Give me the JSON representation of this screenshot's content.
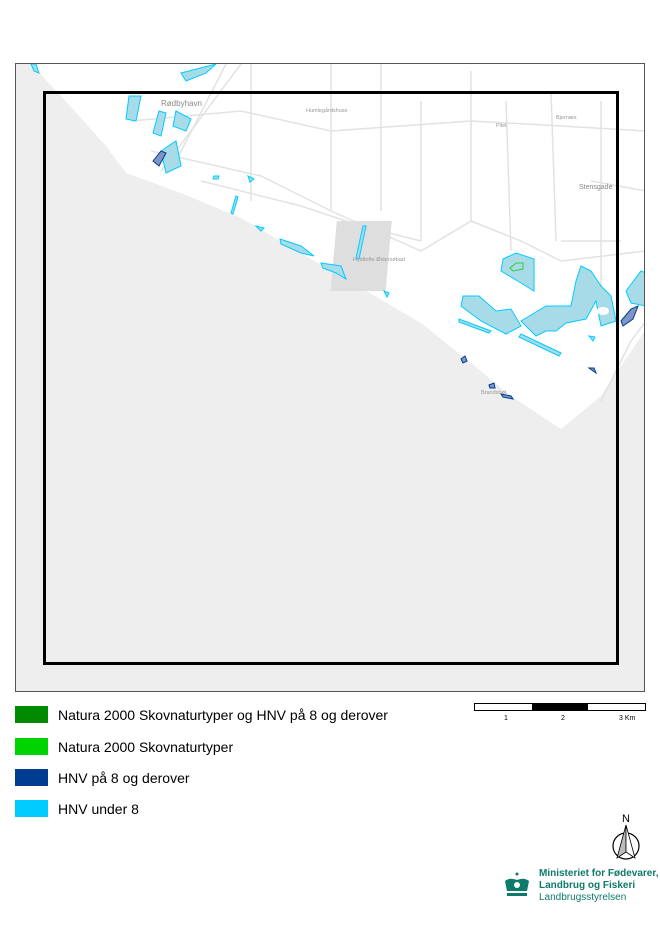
{
  "map": {
    "place_names": [
      "Rødbyhavn",
      "Humlegårdshuse",
      "Pilet",
      "Bjernæs",
      "Stensgade",
      "Hyldtofte Østersøbad",
      "Brandsbøl"
    ],
    "colors": {
      "sea": "#eeeeee",
      "land": "#ffffff",
      "roads": "#dddddd",
      "extent_frame": "#000000"
    }
  },
  "legend": [
    {
      "label": "Natura 2000 Skovnaturtyper og HNV på 8 og derover",
      "color": "#008a00"
    },
    {
      "label": "Natura 2000 Skovnaturtyper",
      "color": "#00d400"
    },
    {
      "label": "HNV på 8 og derover",
      "color": "#003c8f"
    },
    {
      "label": "HNV under 8",
      "color": "#00ccff"
    }
  ],
  "scale_bar": {
    "labels": [
      "1",
      "2",
      "3 Km"
    ]
  },
  "north_arrow": {
    "label": "N"
  },
  "logo": {
    "line1": "Ministeriet for Fødevarer,",
    "line2": "Landbrug og Fiskeri",
    "line3": "Landbrugsstyrelsen"
  }
}
